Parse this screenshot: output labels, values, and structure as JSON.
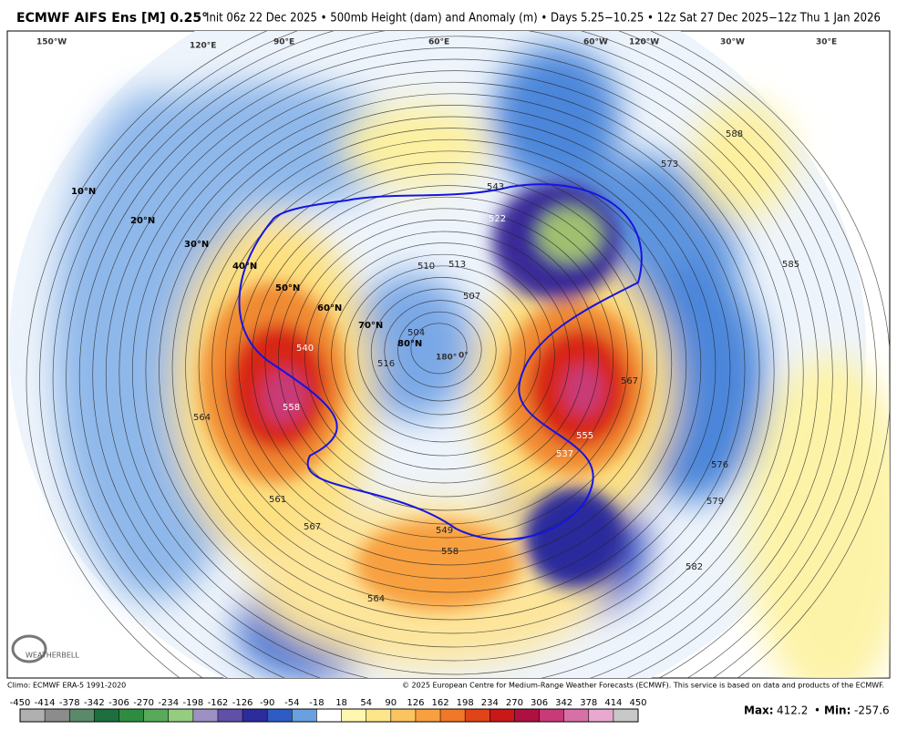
{
  "header": {
    "title_bold": "ECMWF AIFS Ens [M] 0.25°",
    "title_rest": "Init 06z 22 Dec 2025 • 500mb Height (dam) and Anomaly (m) • Days 5.25−10.25 • 12z Sat 27 Dec 2025−12z Thu 1 Jan 2026"
  },
  "map": {
    "latitude_labels": [
      "10°N",
      "20°N",
      "30°N",
      "40°N",
      "50°N",
      "60°N",
      "70°N",
      "80°N"
    ],
    "longitude_labels": [
      "180°",
      "0°",
      "120°E",
      "90°E",
      "60°E",
      "30°E",
      "150°W",
      "120°W",
      "60°W",
      "30°W"
    ],
    "contour_labels": [
      543,
      522,
      510,
      513,
      507,
      504,
      540,
      558,
      516,
      564,
      561,
      567,
      555,
      537,
      567,
      573,
      576,
      579,
      582,
      585,
      588,
      549,
      558,
      564
    ],
    "logo": "WEATHERBELL"
  },
  "footer": {
    "climo": "Climo: ECMWF ERA-5 1991-2020",
    "copyright": "© 2025 European Centre for Medium-Range Weather Forecasts (ECMWF). This service is based on data and products of the ECMWF."
  },
  "colorbar": {
    "ticks": [
      -450,
      -414,
      -378,
      -342,
      -306,
      -270,
      -234,
      -198,
      -162,
      -126,
      -90,
      -54,
      -18,
      18,
      54,
      90,
      126,
      162,
      198,
      234,
      270,
      306,
      342,
      378,
      414,
      450
    ],
    "colors": [
      "#b0b0b0",
      "#8c8c8c",
      "#5a8a6a",
      "#1e6e3e",
      "#2e8c40",
      "#58aa5a",
      "#94cc80",
      "#9c90c4",
      "#6050a8",
      "#2c2c9c",
      "#2e5cc4",
      "#6aa0e0",
      "#ffffff",
      "#fff7b0",
      "#fde68a",
      "#fbc460",
      "#f8a040",
      "#f07828",
      "#e04418",
      "#c81818",
      "#b01040",
      "#c83a78",
      "#d870a8",
      "#e8a8d0",
      "#c8c8c8"
    ]
  },
  "stats": {
    "max_label": "Max:",
    "max": 412.2,
    "separator": "•",
    "min_label": "Min:",
    "min": -257.6
  }
}
